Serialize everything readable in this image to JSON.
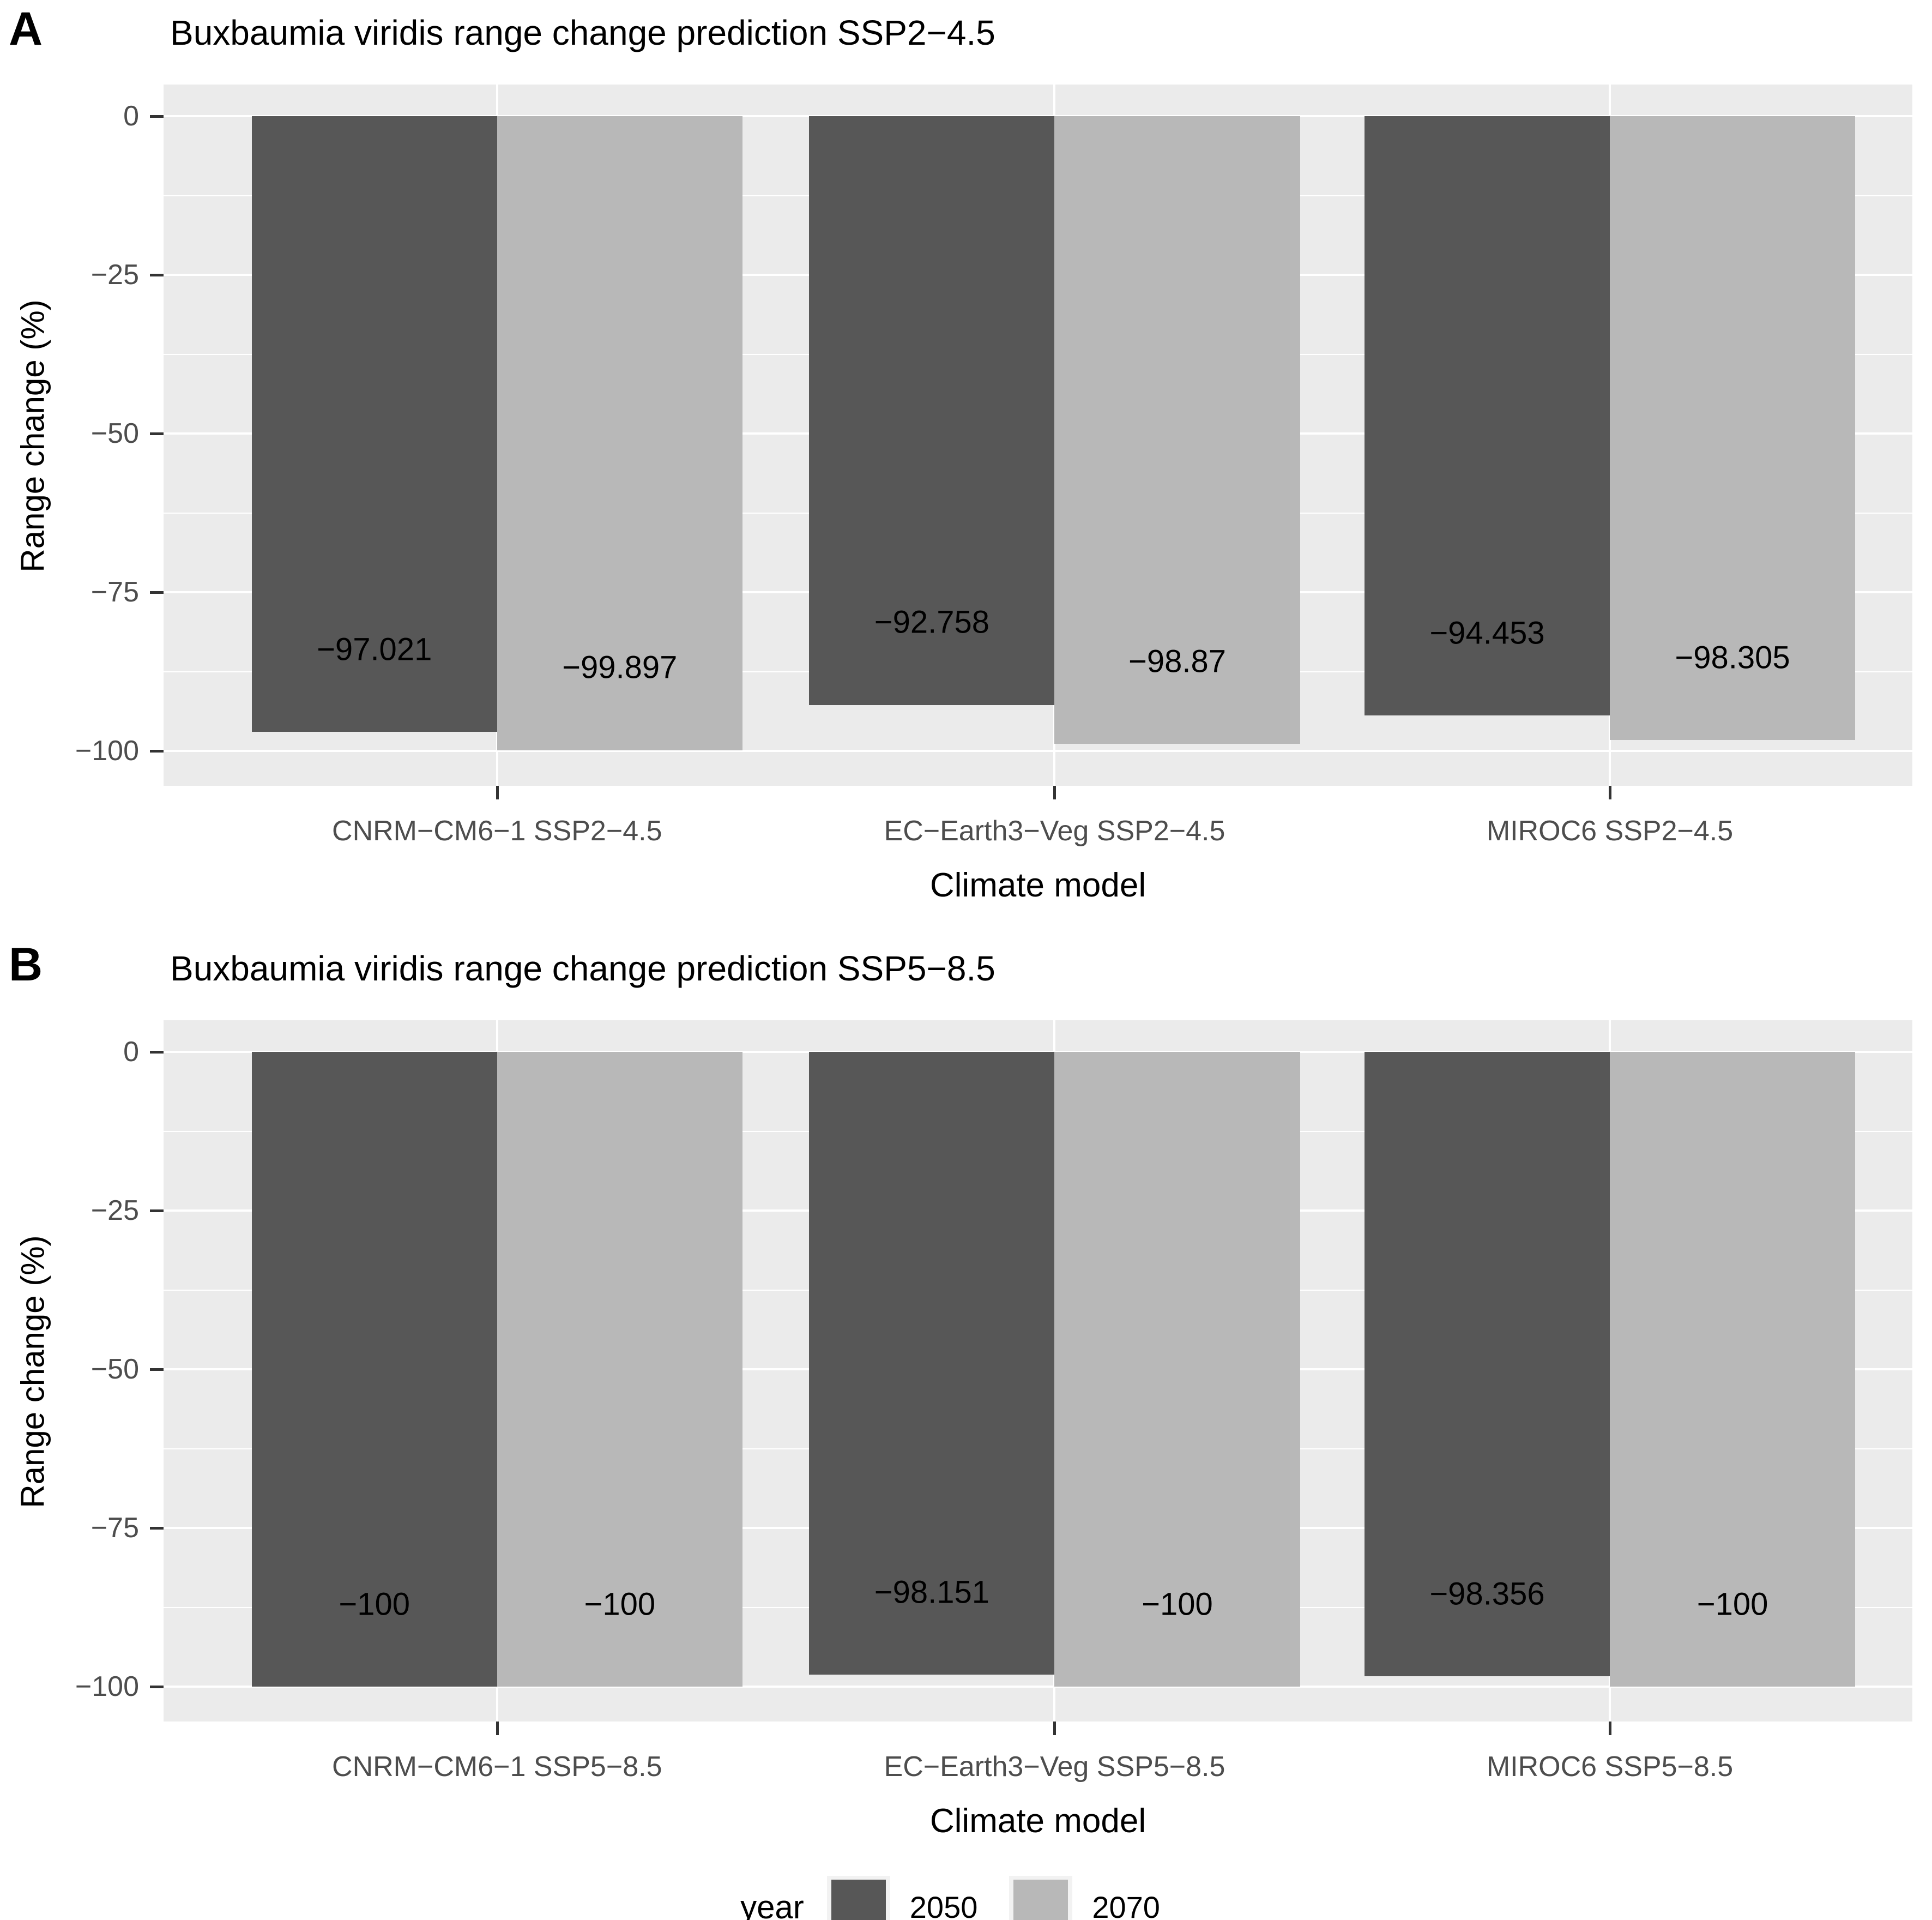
{
  "chart_data": [
    {
      "type": "bar",
      "panel_label": "A",
      "title": "Buxbaumia viridis range change prediction SSP2−4.5",
      "xlabel": "Climate model",
      "ylabel": "Range change (%)",
      "categories": [
        "CNRM−CM6−1 SSP2−4.5",
        "EC−Earth3−Veg SSP2−4.5",
        "MIROC6 SSP2−4.5"
      ],
      "series": [
        {
          "name": "2050",
          "color": "#575757",
          "values": [
            -97.021,
            -92.758,
            -94.453
          ],
          "labels": [
            "−97.021",
            "−92.758",
            "−94.453"
          ]
        },
        {
          "name": "2070",
          "color": "#B8B8B8",
          "values": [
            -99.897,
            -98.87,
            -98.305
          ],
          "labels": [
            "−99.897",
            "−98.87",
            "−98.305"
          ]
        }
      ],
      "ylim": [
        0,
        -100
      ],
      "yticks": [
        0,
        -25,
        -50,
        -75,
        -100
      ],
      "ytick_labels": [
        "0",
        "−25",
        "−50",
        "−75",
        "−100"
      ],
      "yticks_minor": [
        -12.5,
        -37.5,
        -62.5,
        -87.5
      ],
      "grid": true,
      "legend_position": "bottom"
    },
    {
      "type": "bar",
      "panel_label": "B",
      "title": "Buxbaumia viridis range change prediction SSP5−8.5",
      "xlabel": "Climate model",
      "ylabel": "Range change (%)",
      "categories": [
        "CNRM−CM6−1 SSP5−8.5",
        "EC−Earth3−Veg SSP5−8.5",
        "MIROC6 SSP5−8.5"
      ],
      "series": [
        {
          "name": "2050",
          "color": "#575757",
          "values": [
            -100,
            -98.151,
            -98.356
          ],
          "labels": [
            "−100",
            "−98.151",
            "−98.356"
          ]
        },
        {
          "name": "2070",
          "color": "#B8B8B8",
          "values": [
            -100,
            -100,
            -100
          ],
          "labels": [
            "−100",
            "−100",
            "−100"
          ]
        }
      ],
      "ylim": [
        0,
        -100
      ],
      "yticks": [
        0,
        -25,
        -50,
        -75,
        -100
      ],
      "ytick_labels": [
        "0",
        "−25",
        "−50",
        "−75",
        "−100"
      ],
      "yticks_minor": [
        -12.5,
        -37.5,
        -62.5,
        -87.5
      ],
      "grid": true,
      "legend_position": "bottom"
    }
  ],
  "legend": {
    "title": "year",
    "entries": [
      {
        "label": "2050",
        "color": "#575757"
      },
      {
        "label": "2070",
        "color": "#B8B8B8"
      }
    ]
  },
  "colors": {
    "panel_background": "#EBEBEB",
    "gridline": "#FFFFFF",
    "axis_text": "#4D4D4D",
    "tick_mark": "#333333",
    "bar_2050": "#575757",
    "bar_2070": "#B8B8B8",
    "legend_key_background": "#F2F2F2"
  }
}
